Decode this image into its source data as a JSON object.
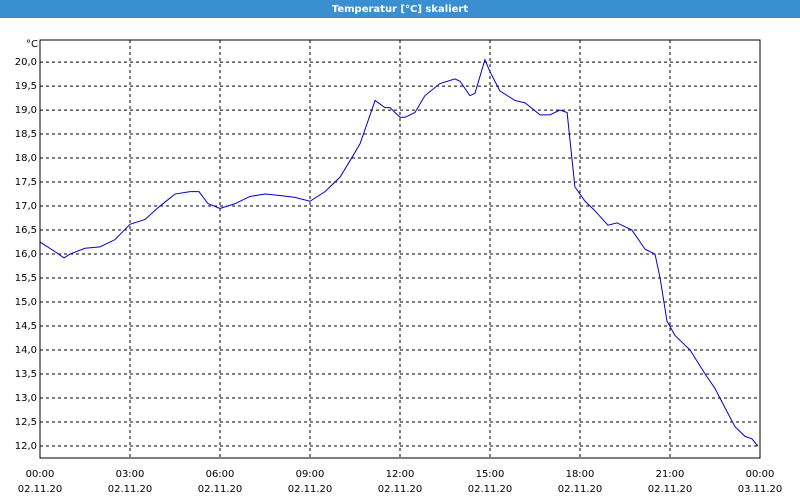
{
  "window_title": "Temperatur [°C] skaliert",
  "chart_data": {
    "type": "line",
    "y_unit_label": "°C",
    "x": [
      0,
      0.5,
      0.8,
      1,
      1.5,
      2,
      2.5,
      3,
      3.5,
      4,
      4.5,
      5,
      5.3,
      5.6,
      6,
      6.5,
      7,
      7.5,
      8,
      8.5,
      9,
      9.5,
      10,
      10.33,
      10.67,
      11.17,
      11.5,
      11.67,
      12,
      12.17,
      12.5,
      12.83,
      13.33,
      13.83,
      14,
      14.33,
      14.5,
      14.83,
      15,
      15.33,
      15.83,
      16.17,
      16.67,
      17,
      17.33,
      17.57,
      17.83,
      18.17,
      18.5,
      18.93,
      19.23,
      19.73,
      20.17,
      20.5,
      20.67,
      20.9,
      21.17,
      21.67,
      22.17,
      22.5,
      22.83,
      23.17,
      23.5,
      23.73,
      23.93
    ],
    "series": [
      {
        "name": "Temperatur",
        "color": "#0000cc",
        "values": [
          16.25,
          16.05,
          15.92,
          16.0,
          16.12,
          16.15,
          16.3,
          16.62,
          16.72,
          17.0,
          17.25,
          17.3,
          17.3,
          17.05,
          16.95,
          17.05,
          17.2,
          17.25,
          17.22,
          17.18,
          17.1,
          17.3,
          17.6,
          17.94,
          18.3,
          19.2,
          19.05,
          19.05,
          18.85,
          18.85,
          18.95,
          19.3,
          19.55,
          19.65,
          19.6,
          19.3,
          19.35,
          20.05,
          19.8,
          19.4,
          19.2,
          19.15,
          18.9,
          18.9,
          19.0,
          18.95,
          17.4,
          17.1,
          16.9,
          16.6,
          16.65,
          16.5,
          16.1,
          16.0,
          15.5,
          14.6,
          14.3,
          14.0,
          13.5,
          13.2,
          12.8,
          12.4,
          12.2,
          12.15,
          12.0
        ]
      }
    ],
    "xlim": [
      0,
      24
    ],
    "xticks": [
      {
        "value": 0,
        "label": "00:00",
        "date": "02.11.20"
      },
      {
        "value": 3,
        "label": "03:00",
        "date": "02.11.20"
      },
      {
        "value": 6,
        "label": "06:00",
        "date": "02.11.20"
      },
      {
        "value": 9,
        "label": "09:00",
        "date": "02.11.20"
      },
      {
        "value": 12,
        "label": "12:00",
        "date": "02.11.20"
      },
      {
        "value": 15,
        "label": "15:00",
        "date": "02.11.20"
      },
      {
        "value": 18,
        "label": "18:00",
        "date": "02.11.20"
      },
      {
        "value": 21,
        "label": "21:00",
        "date": "02.11.20"
      },
      {
        "value": 24,
        "label": "00:00",
        "date": "03.11.20"
      }
    ],
    "ylim": [
      11.75,
      20.46
    ],
    "yticks": [
      {
        "value": 12,
        "label": "12,0"
      },
      {
        "value": 12.5,
        "label": "12,5"
      },
      {
        "value": 13,
        "label": "13,0"
      },
      {
        "value": 13.5,
        "label": "13,5"
      },
      {
        "value": 14,
        "label": "14,0"
      },
      {
        "value": 14.5,
        "label": "14,5"
      },
      {
        "value": 15,
        "label": "15,0"
      },
      {
        "value": 15.5,
        "label": "15,5"
      },
      {
        "value": 16,
        "label": "16,0"
      },
      {
        "value": 16.5,
        "label": "16,5"
      },
      {
        "value": 17,
        "label": "17,0"
      },
      {
        "value": 17.5,
        "label": "17,5"
      },
      {
        "value": 18,
        "label": "18,0"
      },
      {
        "value": 18.5,
        "label": "18,5"
      },
      {
        "value": 19,
        "label": "19,0"
      },
      {
        "value": 19.5,
        "label": "19,5"
      },
      {
        "value": 20,
        "label": "20,0"
      }
    ],
    "grid": true
  }
}
